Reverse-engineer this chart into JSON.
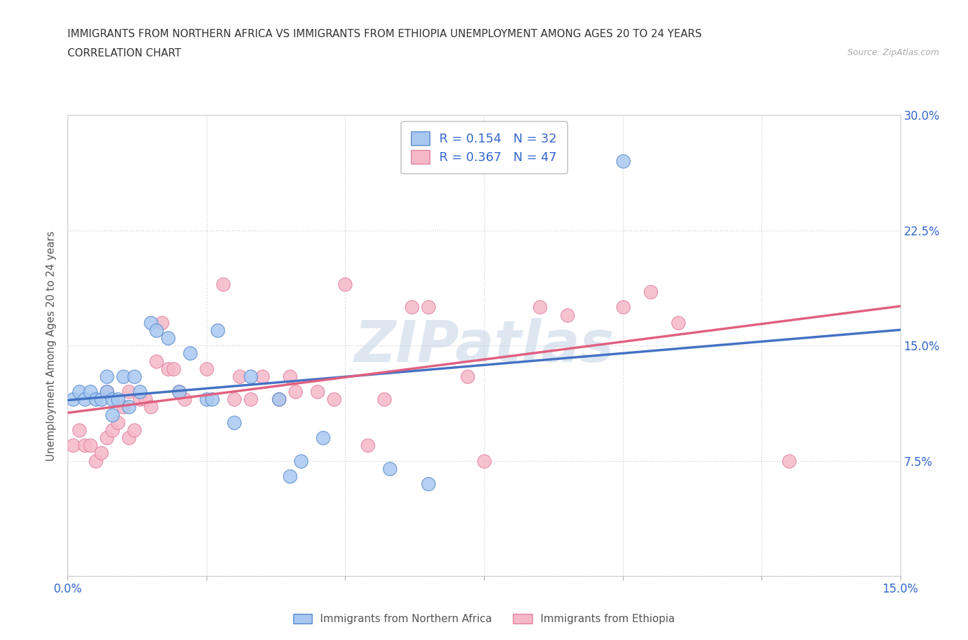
{
  "title_line1": "IMMIGRANTS FROM NORTHERN AFRICA VS IMMIGRANTS FROM ETHIOPIA UNEMPLOYMENT AMONG AGES 20 TO 24 YEARS",
  "title_line2": "CORRELATION CHART",
  "source_text": "Source: ZipAtlas.com",
  "ylabel": "Unemployment Among Ages 20 to 24 years",
  "xmin": 0.0,
  "xmax": 0.15,
  "ymin": 0.0,
  "ymax": 0.3,
  "xticks": [
    0.0,
    0.025,
    0.05,
    0.075,
    0.1,
    0.125,
    0.15
  ],
  "yticks": [
    0.0,
    0.075,
    0.15,
    0.225,
    0.3
  ],
  "series1_name": "Immigrants from Northern Africa",
  "series1_color": "#a8c8f0",
  "series1_border_color": "#5588cc",
  "series1_line_color": "#4472c4",
  "series1_R": 0.154,
  "series1_N": 32,
  "series2_name": "Immigrants from Ethiopia",
  "series2_color": "#f5b8c8",
  "series2_border_color": "#e080a0",
  "series2_line_color": "#e06080",
  "series2_R": 0.367,
  "series2_N": 47,
  "legend_blue_color": "#3366cc",
  "legend_orange_color": "#cc4400",
  "watermark": "ZIPatlas",
  "watermark_color": "#c8d8e8",
  "dot_size": 200,
  "series1_x": [
    0.001,
    0.002,
    0.003,
    0.004,
    0.005,
    0.006,
    0.007,
    0.007,
    0.008,
    0.008,
    0.009,
    0.01,
    0.011,
    0.012,
    0.013,
    0.015,
    0.016,
    0.018,
    0.02,
    0.022,
    0.025,
    0.026,
    0.027,
    0.03,
    0.033,
    0.038,
    0.04,
    0.042,
    0.046,
    0.058,
    0.065,
    0.1
  ],
  "series1_y": [
    0.115,
    0.12,
    0.115,
    0.12,
    0.115,
    0.115,
    0.12,
    0.13,
    0.105,
    0.115,
    0.115,
    0.13,
    0.11,
    0.13,
    0.12,
    0.165,
    0.16,
    0.155,
    0.12,
    0.145,
    0.115,
    0.115,
    0.16,
    0.1,
    0.13,
    0.115,
    0.065,
    0.075,
    0.09,
    0.07,
    0.06,
    0.27
  ],
  "series2_x": [
    0.001,
    0.002,
    0.003,
    0.004,
    0.005,
    0.006,
    0.007,
    0.007,
    0.008,
    0.009,
    0.01,
    0.011,
    0.011,
    0.012,
    0.013,
    0.014,
    0.015,
    0.016,
    0.017,
    0.018,
    0.019,
    0.02,
    0.021,
    0.025,
    0.028,
    0.03,
    0.031,
    0.033,
    0.035,
    0.038,
    0.04,
    0.041,
    0.045,
    0.048,
    0.05,
    0.054,
    0.057,
    0.062,
    0.065,
    0.072,
    0.075,
    0.085,
    0.09,
    0.1,
    0.105,
    0.11,
    0.13
  ],
  "series2_y": [
    0.085,
    0.095,
    0.085,
    0.085,
    0.075,
    0.08,
    0.09,
    0.12,
    0.095,
    0.1,
    0.11,
    0.09,
    0.12,
    0.095,
    0.115,
    0.115,
    0.11,
    0.14,
    0.165,
    0.135,
    0.135,
    0.12,
    0.115,
    0.135,
    0.19,
    0.115,
    0.13,
    0.115,
    0.13,
    0.115,
    0.13,
    0.12,
    0.12,
    0.115,
    0.19,
    0.085,
    0.115,
    0.175,
    0.175,
    0.13,
    0.075,
    0.175,
    0.17,
    0.175,
    0.185,
    0.165,
    0.075
  ]
}
